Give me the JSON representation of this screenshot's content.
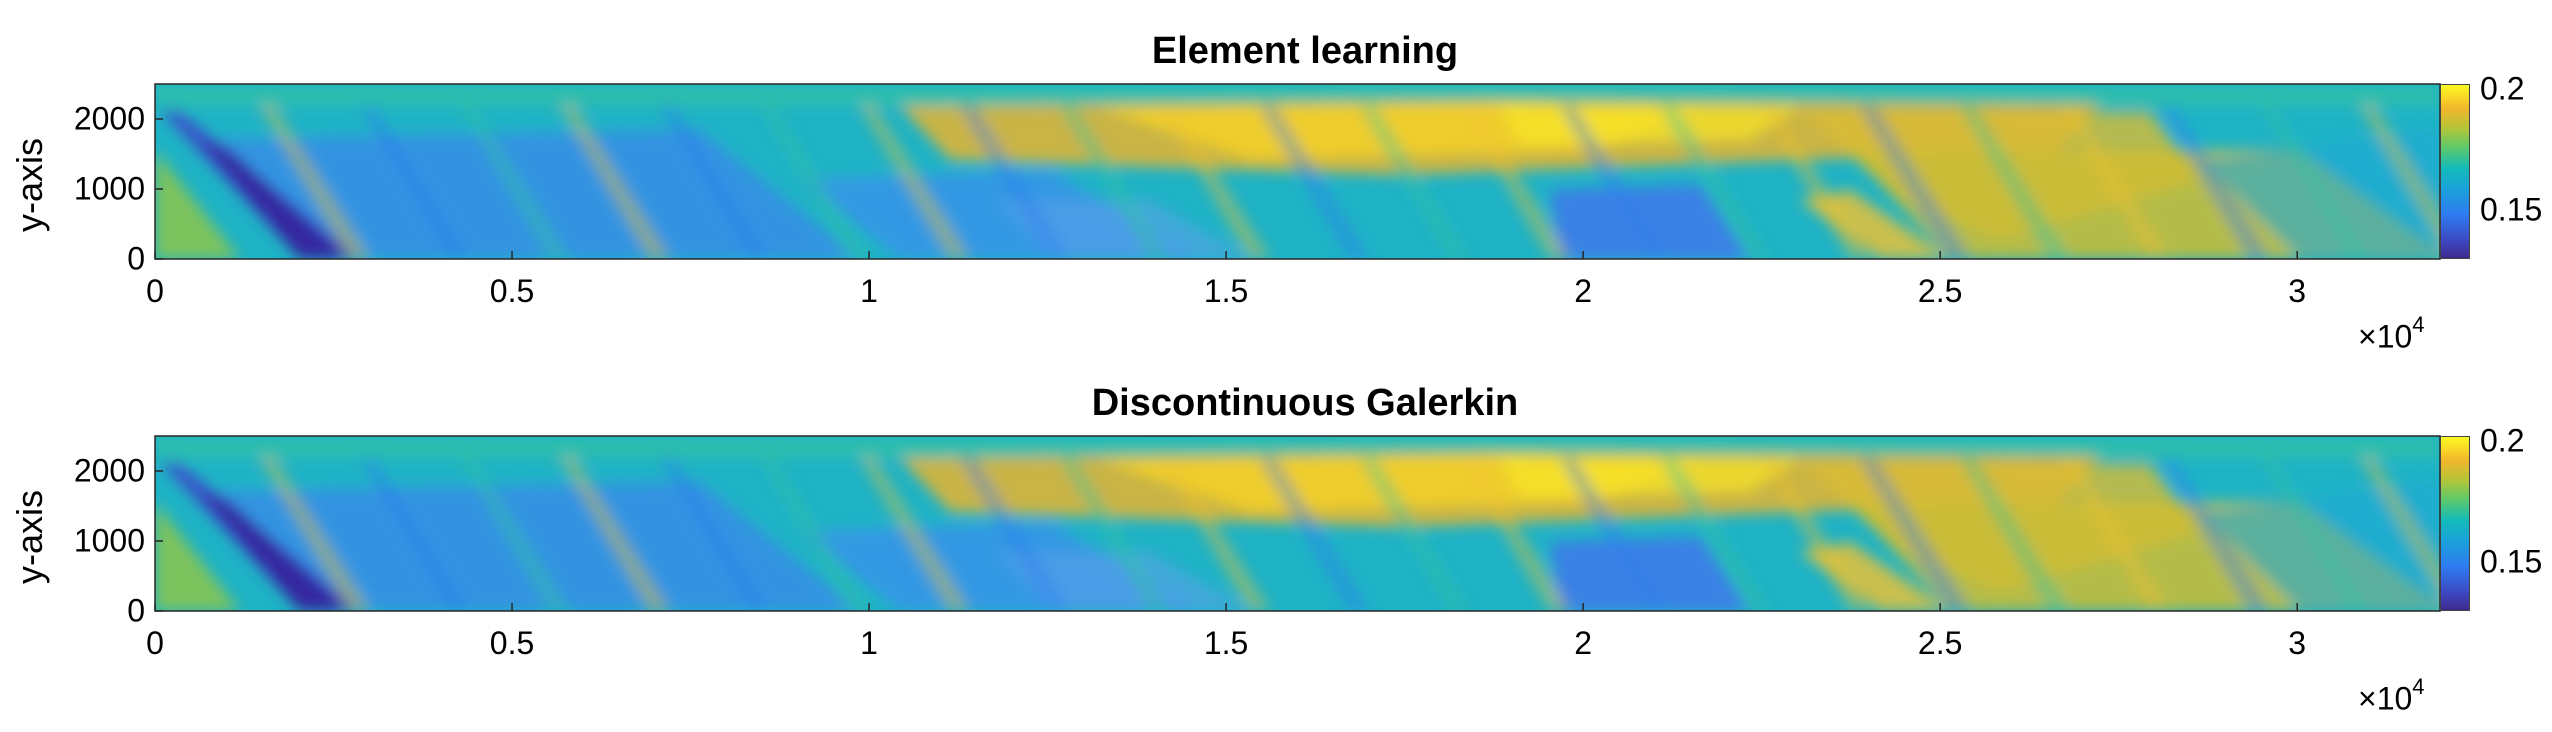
{
  "chart_data": [
    {
      "type": "heatmap",
      "title": "Element learning",
      "xlabel": "",
      "ylabel": "y-axis",
      "xlim": [
        0,
        32000
      ],
      "ylim": [
        0,
        2500
      ],
      "x_ticks": [
        "0",
        "0.5",
        "1",
        "1.5",
        "2",
        "2.5",
        "3"
      ],
      "x_tick_values": [
        0,
        5000,
        10000,
        15000,
        20000,
        25000,
        30000
      ],
      "x_exponent_base": "×10",
      "x_exponent": "4",
      "y_ticks": [
        "0",
        "1000",
        "2000"
      ],
      "y_tick_values": [
        0,
        1000,
        2000
      ],
      "colormap": "parula",
      "clim": [
        0.13,
        0.202
      ],
      "colorbar_ticks": [
        "0.15",
        "0.2"
      ],
      "colorbar_tick_values": [
        0.15,
        0.2
      ]
    },
    {
      "type": "heatmap",
      "title": "Discontinuous Galerkin",
      "xlabel": "",
      "ylabel": "y-axis",
      "xlim": [
        0,
        32000
      ],
      "ylim": [
        0,
        2500
      ],
      "x_ticks": [
        "0",
        "0.5",
        "1",
        "1.5",
        "2",
        "2.5",
        "3"
      ],
      "x_tick_values": [
        0,
        5000,
        10000,
        15000,
        20000,
        25000,
        30000
      ],
      "x_exponent_base": "×10",
      "x_exponent": "4",
      "y_ticks": [
        "0",
        "1000",
        "2000"
      ],
      "y_tick_values": [
        0,
        1000,
        2000
      ],
      "colormap": "parula",
      "clim": [
        0.13,
        0.202
      ],
      "colorbar_ticks": [
        "0.15",
        "0.2"
      ],
      "colorbar_tick_values": [
        0.15,
        0.2
      ]
    }
  ]
}
